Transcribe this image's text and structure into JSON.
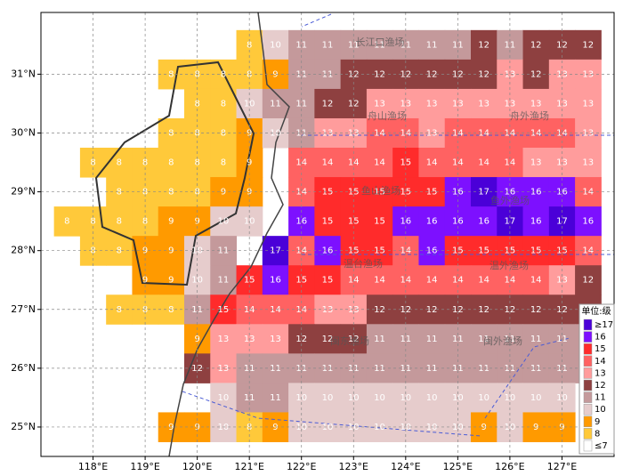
{
  "chart_data": {
    "type": "grid-map",
    "xlim": [
      117,
      128
    ],
    "ylim": [
      24.5,
      32.05
    ],
    "xticks": [
      {
        "value": 118,
        "label": "118°E"
      },
      {
        "value": 119,
        "label": "119°E"
      },
      {
        "value": 120,
        "label": "120°E"
      },
      {
        "value": 121,
        "label": "121°E"
      },
      {
        "value": 122,
        "label": "122°E"
      },
      {
        "value": 123,
        "label": "123°E"
      },
      {
        "value": 124,
        "label": "124°E"
      },
      {
        "value": 125,
        "label": "125°E"
      },
      {
        "value": 126,
        "label": "126°E"
      },
      {
        "value": 127,
        "label": "127°E"
      }
    ],
    "yticks": [
      {
        "value": 25,
        "label": "25°N"
      },
      {
        "value": 26,
        "label": "26°N"
      },
      {
        "value": 27,
        "label": "27°N"
      },
      {
        "value": 28,
        "label": "28°N"
      },
      {
        "value": 29,
        "label": "29°N"
      },
      {
        "value": 30,
        "label": "30°N"
      },
      {
        "value": 31,
        "label": "31°N"
      }
    ],
    "grid": true,
    "lons": [
      117.5,
      118,
      118.5,
      119,
      119.5,
      120,
      120.5,
      121,
      121.5,
      122,
      122.5,
      123,
      123.5,
      124,
      124.5,
      125,
      125.5,
      126,
      126.5,
      127,
      127.5
    ],
    "lats": [
      31.5,
      31,
      30.5,
      30,
      29.5,
      29,
      28.5,
      28,
      27.5,
      27,
      26.5,
      26,
      25.5,
      25
    ],
    "values": [
      [
        null,
        null,
        null,
        null,
        null,
        null,
        null,
        8,
        10,
        11,
        11,
        11,
        11,
        11,
        11,
        11,
        12,
        11,
        12,
        12,
        12
      ],
      [
        null,
        null,
        null,
        null,
        8,
        8,
        8,
        8,
        9,
        11,
        11,
        12,
        12,
        12,
        12,
        12,
        12,
        13,
        12,
        13,
        13
      ],
      [
        null,
        null,
        null,
        null,
        null,
        8,
        8,
        10,
        11,
        11,
        12,
        12,
        13,
        13,
        13,
        13,
        13,
        13,
        13,
        13,
        13
      ],
      [
        null,
        null,
        null,
        null,
        8,
        8,
        8,
        9,
        10,
        11,
        13,
        13,
        14,
        14,
        13,
        14,
        14,
        14,
        14,
        14,
        13
      ],
      [
        null,
        8,
        8,
        8,
        8,
        8,
        8,
        9,
        null,
        14,
        14,
        14,
        14,
        15,
        14,
        14,
        14,
        14,
        13,
        13,
        13
      ],
      [
        null,
        null,
        8,
        8,
        8,
        8,
        9,
        9,
        null,
        14,
        15,
        15,
        15,
        15,
        15,
        16,
        17,
        16,
        16,
        16,
        14
      ],
      [
        8,
        8,
        8,
        8,
        9,
        9,
        10,
        10,
        null,
        16,
        15,
        15,
        15,
        16,
        16,
        16,
        16,
        17,
        16,
        17,
        16
      ],
      [
        null,
        8,
        8,
        9,
        9,
        10,
        11,
        null,
        17,
        14,
        16,
        15,
        15,
        14,
        16,
        15,
        15,
        15,
        15,
        15,
        14
      ],
      [
        null,
        null,
        null,
        9,
        9,
        10,
        11,
        15,
        16,
        15,
        15,
        14,
        14,
        14,
        14,
        14,
        14,
        14,
        14,
        13,
        12
      ],
      [
        null,
        null,
        8,
        8,
        8,
        11,
        15,
        14,
        14,
        14,
        13,
        13,
        12,
        12,
        12,
        12,
        12,
        12,
        12,
        12,
        12
      ],
      [
        null,
        null,
        null,
        null,
        null,
        9,
        13,
        13,
        13,
        12,
        12,
        12,
        11,
        11,
        11,
        11,
        11,
        11,
        11,
        11,
        11
      ],
      [
        null,
        null,
        null,
        null,
        null,
        12,
        13,
        11,
        11,
        11,
        11,
        11,
        11,
        11,
        11,
        11,
        11,
        11,
        11,
        11,
        11
      ],
      [
        null,
        null,
        null,
        null,
        null,
        null,
        10,
        11,
        11,
        10,
        10,
        10,
        10,
        10,
        10,
        10,
        10,
        10,
        10,
        10,
        null
      ],
      [
        null,
        null,
        null,
        null,
        9,
        9,
        10,
        8,
        9,
        10,
        10,
        10,
        10,
        10,
        10,
        10,
        9,
        10,
        9,
        9,
        null
      ]
    ],
    "legend_title": "单位:级",
    "legend": [
      {
        "level": {
          "value": 17,
          "label": "≥17"
        },
        "color": "#4a00d8"
      },
      {
        "level": 16,
        "color": "#7d10ff"
      },
      {
        "level": 15,
        "color": "#ff2b2b"
      },
      {
        "level": 14,
        "color": "#ff6262"
      },
      {
        "level": 13,
        "color": "#ff9c9c"
      },
      {
        "level": 12,
        "color": "#8e4040"
      },
      {
        "level": 11,
        "color": "#c4999b"
      },
      {
        "level": 10,
        "color": "#e6cccc"
      },
      {
        "level": 9,
        "color": "#ff9a00"
      },
      {
        "level": 8,
        "color": "#ffc93a"
      },
      {
        "level": {
          "value": 7,
          "label": "≤7"
        },
        "color": "#ffffff"
      }
    ],
    "areas": [
      "长江口渔场",
      "舟山渔场",
      "舟外渔场",
      "鱼山渔场",
      "鱼外渔场",
      "温台渔场",
      "温外渔场",
      "闽东渔场",
      "闽外渔场"
    ]
  }
}
